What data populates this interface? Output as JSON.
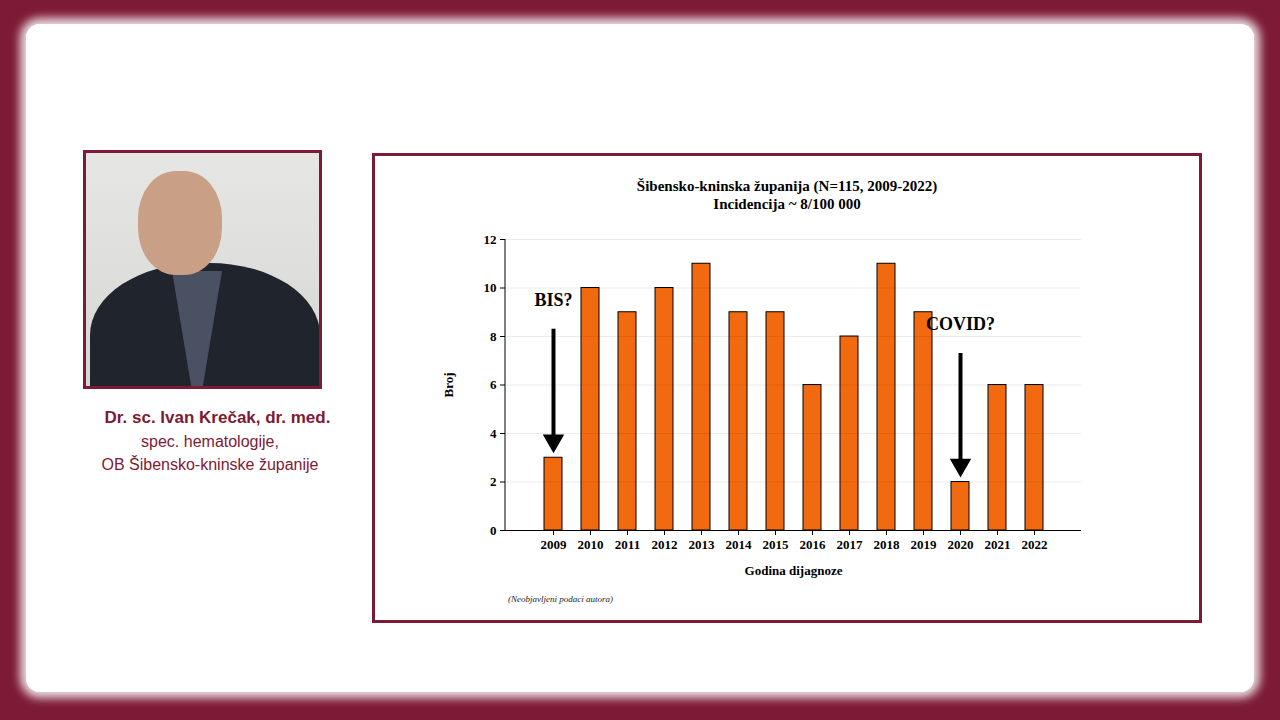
{
  "chart_data": {
    "type": "bar",
    "title": "Šibensko-kninska županija (N=115, 2009-2022)",
    "subtitle": "Incidencija ~ 8/100 000",
    "categories": [
      "2009",
      "2010",
      "2011",
      "2012",
      "2013",
      "2014",
      "2015",
      "2016",
      "2017",
      "2018",
      "2019",
      "2020",
      "2021",
      "2022"
    ],
    "values": [
      3,
      10,
      9,
      10,
      11,
      9,
      9,
      6,
      8,
      11,
      9,
      2,
      6,
      6
    ],
    "color": "#f26a10",
    "ylim": [
      0,
      12
    ],
    "yticks": [
      0,
      2,
      4,
      6,
      8,
      10,
      12
    ],
    "grid": true,
    "x_label": "Godina dijagnoze",
    "y_label": "Broj",
    "annotations": [
      {
        "text": "BIS?",
        "category": "2009"
      },
      {
        "text": "COVID?",
        "category": "2020"
      }
    ],
    "note": "(Neobjavljeni podaci autora)"
  },
  "author": {
    "name": "Dr. sc. Ivan Krečak, dr. med.",
    "lines": [
      "spec. hematologije,",
      "OB Šibensko-kninske županije"
    ]
  }
}
